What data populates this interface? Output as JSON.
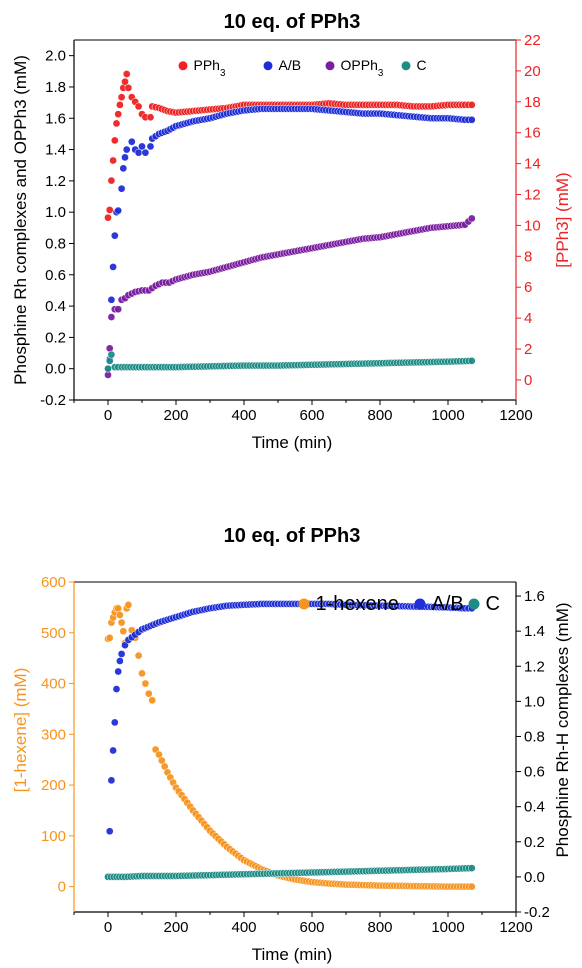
{
  "colors": {
    "pph3": "#ee2222",
    "ab": "#1f2ed6",
    "opph3": "#7a1fa0",
    "c": "#1e8c86",
    "hexene": "#f7941d",
    "axis": "#000000"
  },
  "chart_data": [
    {
      "type": "scatter",
      "title": "10 eq. of PPh3",
      "xlabel": "Time (min)",
      "ylabel": "Phosphine Rh complexes and OPPh3 (mM)",
      "y2label": "[PPh3] (mM)",
      "xlim": [
        -100,
        1200
      ],
      "ylim": [
        -0.2,
        2.1
      ],
      "y2lim": [
        -1.3,
        22
      ],
      "xticks": [
        "0",
        "200",
        "400",
        "600",
        "800",
        "1000",
        "1200"
      ],
      "yticks": [
        "-0.2",
        "0.0",
        "0.2",
        "0.4",
        "0.6",
        "0.8",
        "1.0",
        "1.2",
        "1.4",
        "1.6",
        "1.8",
        "2.0"
      ],
      "y2ticks": [
        "0",
        "2",
        "4",
        "6",
        "8",
        "10",
        "12",
        "14",
        "16",
        "18",
        "20",
        "22"
      ],
      "legend_position": "top",
      "legend": [
        "PPh3",
        "A/B",
        "OPPh3",
        "C"
      ],
      "series": [
        {
          "name": "PPh3",
          "axis": "right",
          "points": [
            [
              0,
              10.5
            ],
            [
              5,
              11.0
            ],
            [
              10,
              12.9
            ],
            [
              15,
              14.2
            ],
            [
              20,
              15.5
            ],
            [
              25,
              16.6
            ],
            [
              30,
              17.2
            ],
            [
              35,
              17.8
            ],
            [
              40,
              18.3
            ],
            [
              45,
              18.9
            ],
            [
              50,
              19.3
            ],
            [
              55,
              19.8
            ],
            [
              60,
              18.9
            ],
            [
              70,
              18.3
            ],
            [
              80,
              18.0
            ],
            [
              90,
              17.7
            ],
            [
              100,
              17.2
            ],
            [
              110,
              17.0
            ],
            [
              125,
              17.0
            ],
            [
              130,
              17.7
            ],
            [
              150,
              17.6
            ],
            [
              175,
              17.4
            ],
            [
              200,
              17.3
            ],
            [
              250,
              17.4
            ],
            [
              300,
              17.5
            ],
            [
              350,
              17.6
            ],
            [
              400,
              17.8
            ],
            [
              450,
              17.8
            ],
            [
              500,
              17.8
            ],
            [
              550,
              17.8
            ],
            [
              600,
              17.8
            ],
            [
              650,
              17.9
            ],
            [
              700,
              17.8
            ],
            [
              750,
              17.8
            ],
            [
              800,
              17.8
            ],
            [
              850,
              17.8
            ],
            [
              900,
              17.7
            ],
            [
              950,
              17.7
            ],
            [
              1000,
              17.8
            ],
            [
              1050,
              17.8
            ],
            [
              1070,
              17.8
            ]
          ]
        },
        {
          "name": "A/B",
          "axis": "left",
          "points": [
            [
              0,
              0.0
            ],
            [
              5,
              0.06
            ],
            [
              10,
              0.44
            ],
            [
              15,
              0.65
            ],
            [
              20,
              0.85
            ],
            [
              25,
              1.0
            ],
            [
              30,
              1.01
            ],
            [
              40,
              1.15
            ],
            [
              45,
              1.28
            ],
            [
              50,
              1.35
            ],
            [
              55,
              1.4
            ],
            [
              70,
              1.45
            ],
            [
              80,
              1.4
            ],
            [
              90,
              1.38
            ],
            [
              100,
              1.42
            ],
            [
              110,
              1.38
            ],
            [
              125,
              1.42
            ],
            [
              130,
              1.47
            ],
            [
              150,
              1.5
            ],
            [
              175,
              1.52
            ],
            [
              200,
              1.55
            ],
            [
              250,
              1.58
            ],
            [
              300,
              1.6
            ],
            [
              350,
              1.63
            ],
            [
              400,
              1.65
            ],
            [
              450,
              1.66
            ],
            [
              500,
              1.66
            ],
            [
              550,
              1.66
            ],
            [
              600,
              1.66
            ],
            [
              650,
              1.65
            ],
            [
              700,
              1.64
            ],
            [
              750,
              1.63
            ],
            [
              800,
              1.63
            ],
            [
              850,
              1.62
            ],
            [
              900,
              1.61
            ],
            [
              950,
              1.6
            ],
            [
              1000,
              1.6
            ],
            [
              1050,
              1.59
            ],
            [
              1070,
              1.59
            ]
          ]
        },
        {
          "name": "OPPh3",
          "axis": "left",
          "points": [
            [
              0,
              -0.04
            ],
            [
              5,
              0.13
            ],
            [
              10,
              0.33
            ],
            [
              20,
              0.38
            ],
            [
              30,
              0.38
            ],
            [
              40,
              0.44
            ],
            [
              50,
              0.45
            ],
            [
              60,
              0.47
            ],
            [
              80,
              0.49
            ],
            [
              100,
              0.5
            ],
            [
              120,
              0.5
            ],
            [
              140,
              0.53
            ],
            [
              160,
              0.55
            ],
            [
              180,
              0.55
            ],
            [
              200,
              0.57
            ],
            [
              250,
              0.6
            ],
            [
              300,
              0.62
            ],
            [
              350,
              0.65
            ],
            [
              400,
              0.68
            ],
            [
              450,
              0.71
            ],
            [
              500,
              0.73
            ],
            [
              550,
              0.75
            ],
            [
              600,
              0.77
            ],
            [
              650,
              0.79
            ],
            [
              700,
              0.81
            ],
            [
              750,
              0.83
            ],
            [
              800,
              0.84
            ],
            [
              850,
              0.86
            ],
            [
              900,
              0.88
            ],
            [
              950,
              0.9
            ],
            [
              1000,
              0.91
            ],
            [
              1050,
              0.92
            ],
            [
              1070,
              0.96
            ]
          ]
        },
        {
          "name": "C",
          "axis": "left",
          "points": [
            [
              0,
              0.0
            ],
            [
              5,
              0.05
            ],
            [
              10,
              0.09
            ],
            [
              20,
              0.01
            ],
            [
              40,
              0.01
            ],
            [
              100,
              0.01
            ],
            [
              200,
              0.01
            ],
            [
              300,
              0.015
            ],
            [
              400,
              0.02
            ],
            [
              500,
              0.02
            ],
            [
              600,
              0.025
            ],
            [
              700,
              0.03
            ],
            [
              800,
              0.035
            ],
            [
              900,
              0.04
            ],
            [
              1000,
              0.045
            ],
            [
              1070,
              0.05
            ]
          ]
        }
      ]
    },
    {
      "type": "scatter",
      "title": "10 eq. of PPh3",
      "xlabel": "Time (min)",
      "ylabel": "[1-hexene] (mM)",
      "y2label": "Phosphine Rh-H complexes (mM)",
      "xlim": [
        -100,
        1200
      ],
      "ylim": [
        -50,
        600
      ],
      "y2lim": [
        -0.2,
        1.68
      ],
      "xticks": [
        "0",
        "200",
        "400",
        "600",
        "800",
        "1000",
        "1200"
      ],
      "yticks": [
        "0",
        "100",
        "200",
        "300",
        "400",
        "500",
        "600"
      ],
      "y2ticks": [
        "-0.2",
        "0.0",
        "0.2",
        "0.4",
        "0.6",
        "0.8",
        "1.0",
        "1.2",
        "1.4",
        "1.6"
      ],
      "legend_position": "top-right",
      "legend": [
        "1-hexene",
        "A/B",
        "C"
      ],
      "series": [
        {
          "name": "1-hexene",
          "axis": "left",
          "points": [
            [
              0,
              488
            ],
            [
              5,
              490
            ],
            [
              10,
              520
            ],
            [
              15,
              530
            ],
            [
              20,
              540
            ],
            [
              25,
              548
            ],
            [
              30,
              548
            ],
            [
              35,
              535
            ],
            [
              40,
              520
            ],
            [
              45,
              503
            ],
            [
              50,
              480
            ],
            [
              55,
              548
            ],
            [
              60,
              555
            ],
            [
              70,
              505
            ],
            [
              80,
              490
            ],
            [
              90,
              455
            ],
            [
              100,
              420
            ],
            [
              110,
              400
            ],
            [
              120,
              380
            ],
            [
              130,
              367
            ],
            [
              140,
              270
            ],
            [
              150,
              260
            ],
            [
              175,
              225
            ],
            [
              200,
              195
            ],
            [
              250,
              150
            ],
            [
              300,
              110
            ],
            [
              350,
              78
            ],
            [
              400,
              52
            ],
            [
              450,
              35
            ],
            [
              500,
              22
            ],
            [
              550,
              14
            ],
            [
              600,
              9
            ],
            [
              650,
              6
            ],
            [
              700,
              4
            ],
            [
              800,
              2
            ],
            [
              900,
              1
            ],
            [
              1000,
              0
            ],
            [
              1070,
              0
            ]
          ]
        },
        {
          "name": "A/B",
          "axis": "right",
          "points": [
            [
              0,
              0.0
            ],
            [
              5,
              0.26
            ],
            [
              10,
              0.55
            ],
            [
              15,
              0.72
            ],
            [
              20,
              0.88
            ],
            [
              25,
              1.07
            ],
            [
              30,
              1.17
            ],
            [
              35,
              1.23
            ],
            [
              40,
              1.27
            ],
            [
              50,
              1.32
            ],
            [
              60,
              1.35
            ],
            [
              80,
              1.38
            ],
            [
              100,
              1.41
            ],
            [
              150,
              1.45
            ],
            [
              200,
              1.48
            ],
            [
              250,
              1.51
            ],
            [
              300,
              1.53
            ],
            [
              350,
              1.545
            ],
            [
              400,
              1.55
            ],
            [
              450,
              1.555
            ],
            [
              500,
              1.555
            ],
            [
              550,
              1.555
            ],
            [
              600,
              1.555
            ],
            [
              650,
              1.555
            ],
            [
              700,
              1.55
            ],
            [
              750,
              1.548
            ],
            [
              800,
              1.545
            ],
            [
              850,
              1.543
            ],
            [
              900,
              1.54
            ],
            [
              950,
              1.538
            ],
            [
              1000,
              1.535
            ],
            [
              1050,
              1.53
            ],
            [
              1070,
              1.53
            ]
          ]
        },
        {
          "name": "C",
          "axis": "right",
          "points": [
            [
              0,
              0.0
            ],
            [
              50,
              0.0
            ],
            [
              100,
              0.005
            ],
            [
              200,
              0.005
            ],
            [
              300,
              0.01
            ],
            [
              400,
              0.015
            ],
            [
              500,
              0.02
            ],
            [
              600,
              0.025
            ],
            [
              700,
              0.03
            ],
            [
              800,
              0.035
            ],
            [
              900,
              0.04
            ],
            [
              1000,
              0.045
            ],
            [
              1070,
              0.05
            ]
          ]
        }
      ]
    }
  ]
}
